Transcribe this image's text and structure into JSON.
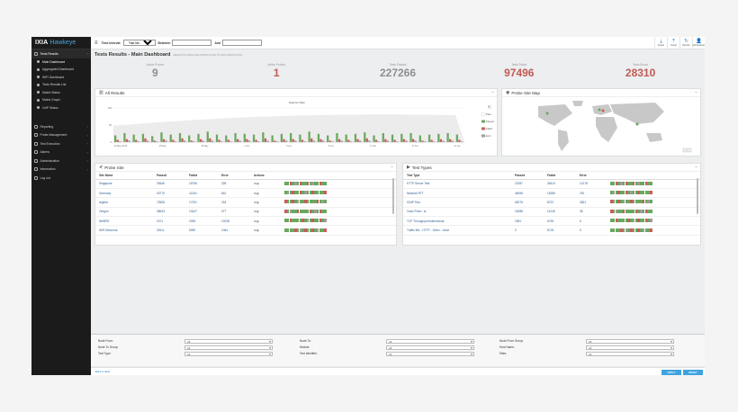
{
  "brand": {
    "logo": "IXIA",
    "product": "Hawkeye"
  },
  "sidebar": {
    "groups": [
      {
        "label": "Tests Results",
        "items": [
          "Main Dashboard",
          "Aggregated Dashboard",
          "WiFi Dashboard",
          "Tests Results List",
          "Matrix Status",
          "Matrix Graph",
          "VoIP Status"
        ]
      },
      {
        "label": "Reporting"
      },
      {
        "label": "Probe Management"
      },
      {
        "label": "Test Execution"
      },
      {
        "label": "Alarms"
      },
      {
        "label": "Administration"
      },
      {
        "label": "Information"
      },
      {
        "label": "Log out"
      }
    ]
  },
  "topbar": {
    "time_interval_label": "Time interval:",
    "time_interval_value": "Past Month",
    "between_label": "Between",
    "and_label": "And",
    "icons": [
      {
        "name": "download-icon",
        "label": "Export"
      },
      {
        "name": "upload-icon",
        "label": "Import"
      },
      {
        "name": "refresh-icon",
        "label": "Refresh"
      },
      {
        "name": "user-icon",
        "label": "Administrator"
      }
    ]
  },
  "page": {
    "title": "Tests Results - Main Dashboard",
    "subtitle": "RESULTS FROM 2017/05/23 22:52 TO 2017/06/23 22:52"
  },
  "stats": [
    {
      "label": "Active Probes",
      "value": "9",
      "color": "#8f8f8f"
    },
    {
      "label": "Active Probes",
      "value": "1",
      "color": "#c05a55"
    },
    {
      "label": "Tests Passed",
      "value": "227266",
      "color": "#8f8f8f"
    },
    {
      "label": "Tests Failed",
      "value": "97496",
      "color": "#c05a55"
    },
    {
      "label": "Tests Errors",
      "value": "28310",
      "color": "#c05a55"
    }
  ],
  "all_results": {
    "title": "All Results",
    "chart_title": "Data for Main"
  },
  "chart_data": {
    "type": "bar",
    "ylim": [
      0,
      100
    ],
    "yticks": [
      "100",
      "50",
      "0"
    ],
    "x_tick_labels": [
      "23 May 22:52",
      "25 May",
      "29 May",
      "1 Jun",
      "5 Jun",
      "9 Jun",
      "13 Jun",
      "17 Jun",
      "21 Jun"
    ],
    "legend": [
      "Pass",
      "Passed",
      "Failed",
      "Error"
    ],
    "series": [
      {
        "name": "Passed",
        "color": "#6aa85e",
        "values": [
          9,
          12,
          10,
          11,
          8,
          13,
          10,
          12,
          9,
          11,
          14,
          10,
          9,
          12,
          11,
          10,
          13,
          9,
          11,
          12,
          10,
          14,
          11,
          9,
          12,
          10,
          11,
          13,
          9,
          12,
          10,
          11,
          12,
          9,
          10,
          11,
          12,
          10
        ]
      },
      {
        "name": "Failed",
        "color": "#c75d5d",
        "values": [
          3,
          4,
          3,
          5,
          2,
          4,
          3,
          5,
          2,
          4,
          5,
          3,
          3,
          4,
          4,
          3,
          5,
          2,
          4,
          4,
          3,
          5,
          4,
          2,
          4,
          3,
          4,
          5,
          3,
          4,
          3,
          4,
          4,
          2,
          3,
          4,
          4,
          3
        ]
      },
      {
        "name": "Error",
        "color": "#9d9d9d",
        "values": [
          1,
          2,
          1,
          2,
          1,
          2,
          1,
          2,
          1,
          2,
          2,
          1,
          1,
          2,
          2,
          1,
          2,
          1,
          2,
          2,
          1,
          2,
          2,
          1,
          2,
          1,
          2,
          2,
          1,
          2,
          1,
          2,
          2,
          1,
          1,
          2,
          2,
          1
        ]
      }
    ]
  },
  "probe_map": {
    "title": "Probe Site Map"
  },
  "probe_site": {
    "title": "Probe Site",
    "columns": [
      "Site Name",
      "Passed",
      "Failed",
      "Error",
      "Actions"
    ],
    "rows": [
      [
        "Singapore",
        "33646",
        "16765",
        "328"
      ],
      [
        "Germany",
        "33770",
        "11264",
        "842"
      ],
      [
        "Algeria",
        "73508",
        "17291",
        "218"
      ],
      [
        "Oregon",
        "38943",
        "13447",
        "377"
      ],
      [
        "WeBPD",
        "2371",
        "2095",
        "10228"
      ],
      [
        "WiFi Monrovia",
        "2511c",
        "6399",
        "1064"
      ]
    ]
  },
  "test_types": {
    "title": "Test Types",
    "columns": [
      "Test Type",
      "Passed",
      "Failed",
      "Error"
    ],
    "rows": [
      [
        "HTTP Server Test",
        "22287",
        "36410",
        "12178"
      ],
      [
        "Network RTT",
        "46498",
        "15289",
        "291"
      ],
      [
        "ICMP Test",
        "65275",
        "8722",
        "3831"
      ],
      [
        "Voice Point - to",
        "16288",
        "11245",
        "38"
      ],
      [
        "TCP Throughput bidirectional",
        "2381",
        "6735",
        "5"
      ],
      [
        "Traffic Mix - HTTP - Video - Voice",
        "0",
        "8718",
        "5"
      ]
    ]
  },
  "filters": {
    "labels": [
      "Node From:",
      "Node To Group:",
      "Test Type:",
      "Node To:",
      "Module:",
      "Test Identifier:",
      "Node From Group:",
      "Host Name:",
      "Sites:"
    ],
    "default_value": "All"
  },
  "bottom": {
    "link": "Back to table",
    "apply": "APPLY",
    "reset": "RESET"
  }
}
